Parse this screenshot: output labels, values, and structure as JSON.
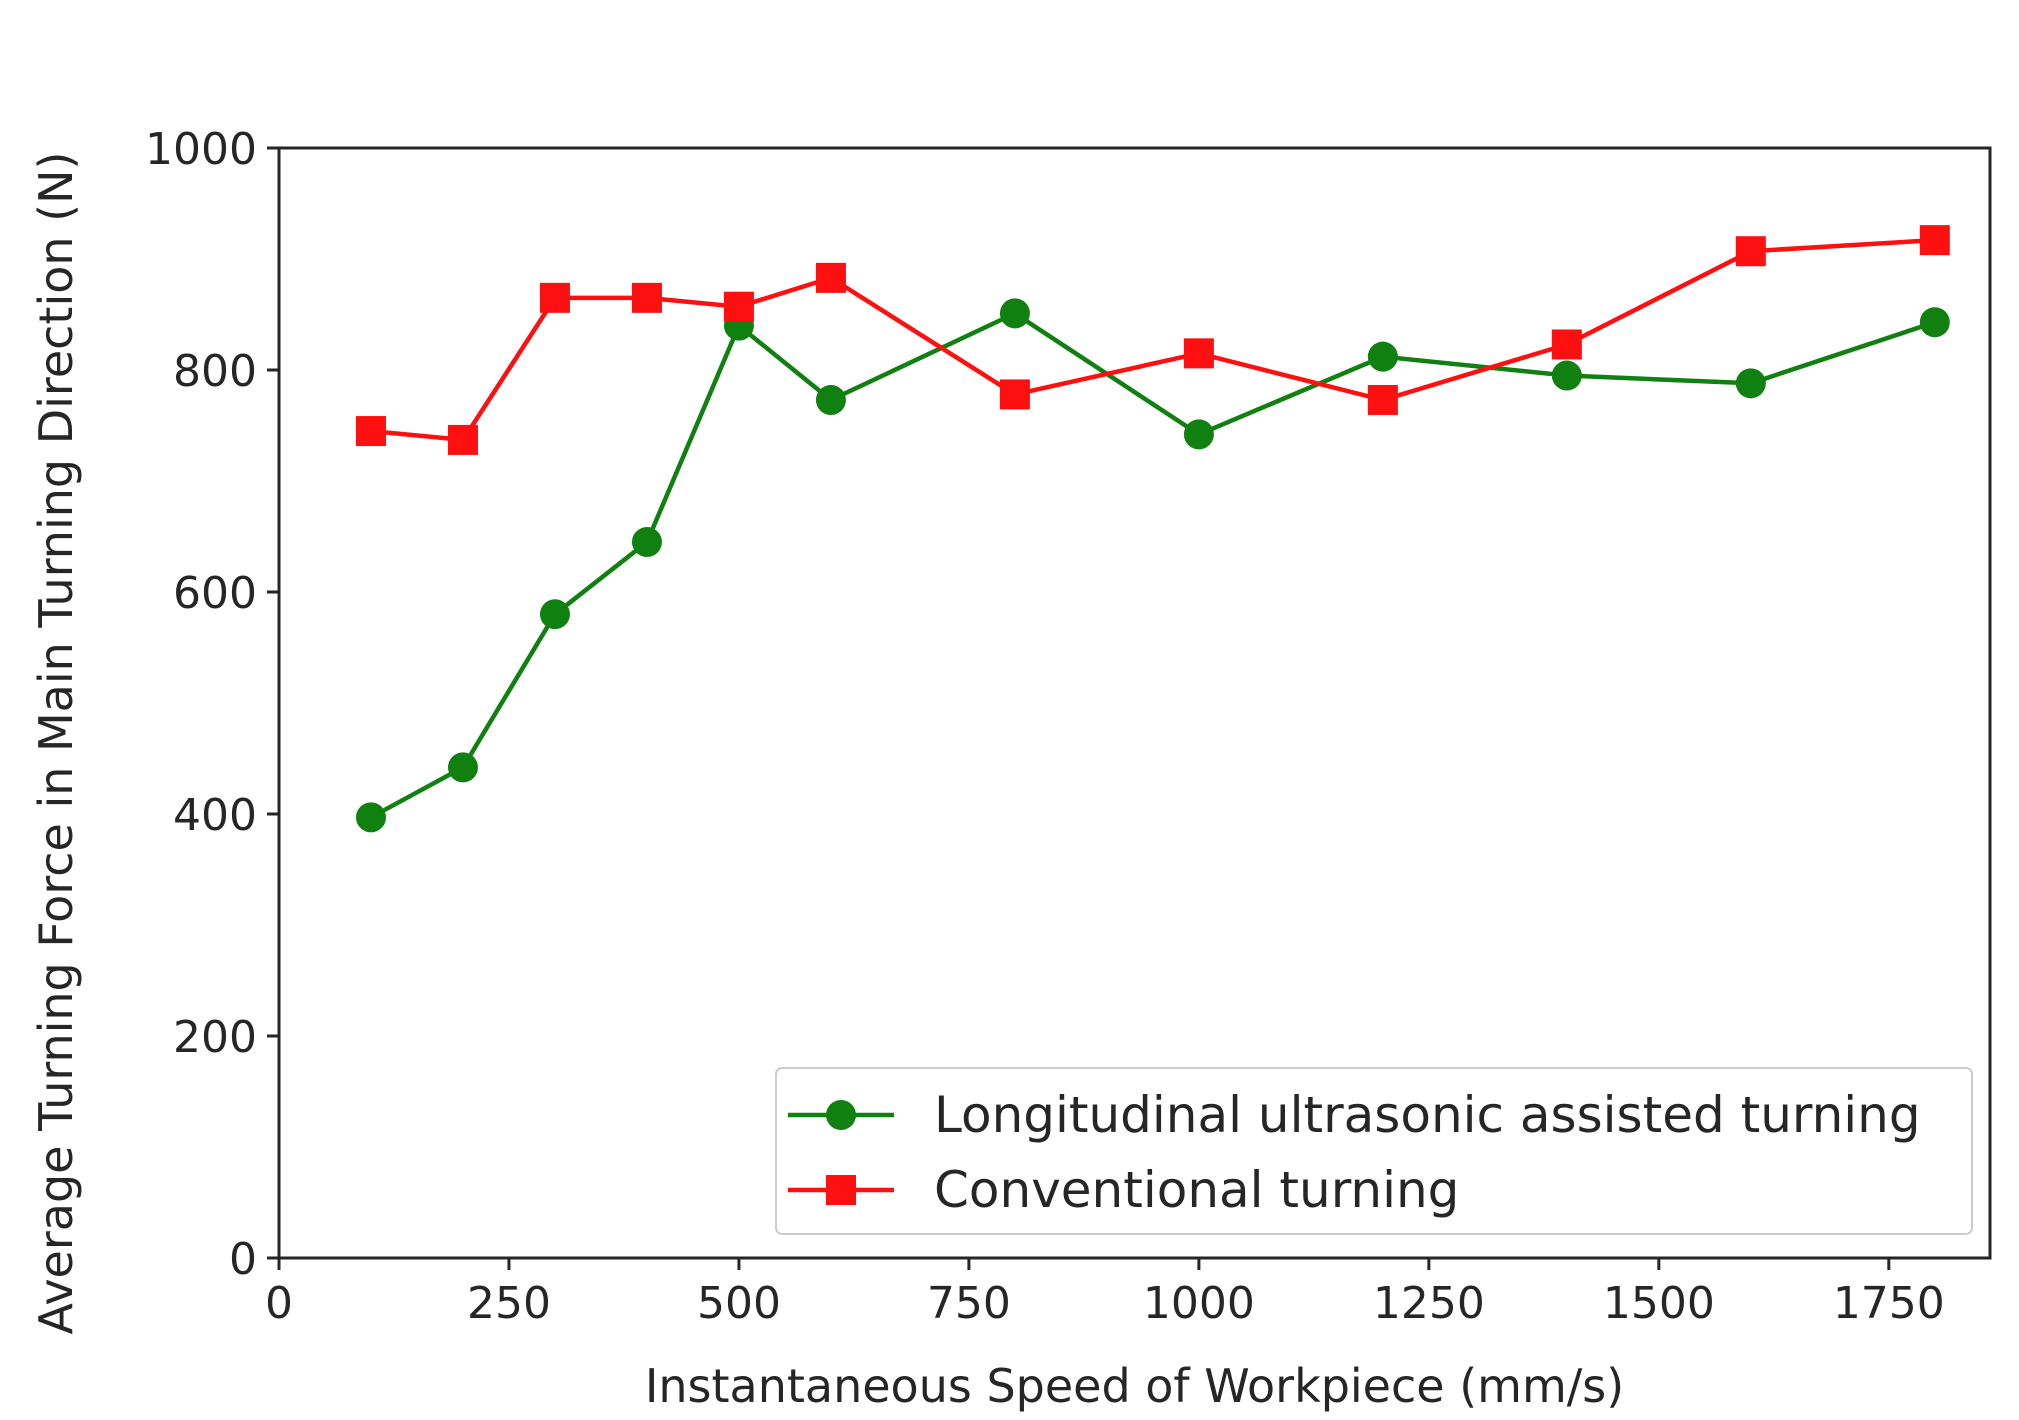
{
  "chart_data": {
    "type": "line",
    "title": "",
    "xlabel": "Instantaneous Speed of Workpiece (mm/s)",
    "ylabel": "Average Turning Force in Main Turning Direction (N)",
    "xlim": [
      0,
      1860
    ],
    "ylim": [
      0,
      1000
    ],
    "xticks": [
      0,
      250,
      500,
      750,
      1000,
      1250,
      1500,
      1750
    ],
    "yticks": [
      0,
      200,
      400,
      600,
      800,
      1000
    ],
    "grid": false,
    "legend_position": "lower-right",
    "series": [
      {
        "name": "Longitudinal ultrasonic assisted turning",
        "color": "#108010",
        "marker": "circle",
        "x": [
          100,
          200,
          300,
          400,
          500,
          600,
          800,
          1000,
          1200,
          1400,
          1600,
          1800
        ],
        "y": [
          397,
          442,
          580,
          645,
          840,
          773,
          851,
          742,
          812,
          795,
          788,
          843
        ]
      },
      {
        "name": "Conventional turning",
        "color": "#ff1010",
        "marker": "square",
        "x": [
          100,
          200,
          300,
          400,
          500,
          600,
          800,
          1000,
          1200,
          1400,
          1600,
          1800
        ],
        "y": [
          745,
          737,
          865,
          865,
          857,
          883,
          778,
          815,
          773,
          823,
          907,
          917
        ]
      }
    ]
  }
}
